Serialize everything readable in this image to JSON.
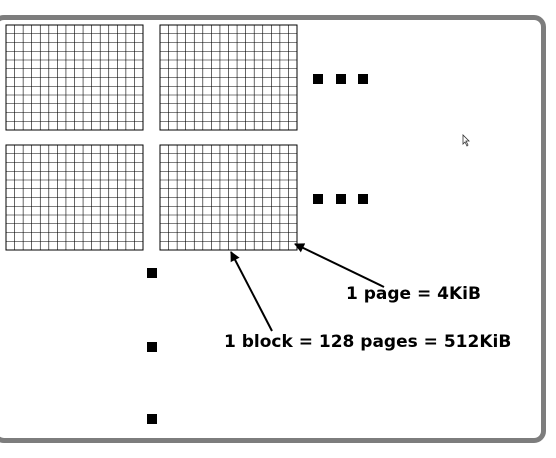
{
  "labels": {
    "page": "1 page = 4KiB",
    "block": "1 block = 128 pages = 512KiB"
  },
  "grid": {
    "columns": 16,
    "rows": 12
  },
  "colors": {
    "frame": "#7d7d7d",
    "grid_line": "#000000",
    "text": "#000000"
  },
  "icons": [
    "ellipsis-horizontal-icon",
    "ellipsis-vertical-icon",
    "mouse-cursor-icon",
    "arrow-icon"
  ]
}
